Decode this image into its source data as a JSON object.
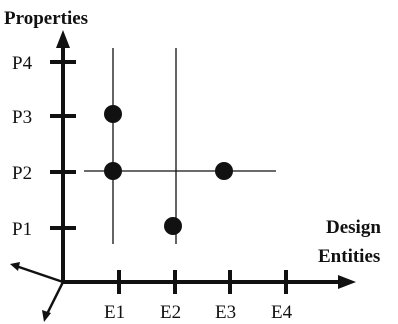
{
  "diagram": {
    "y_axis_title": "Properties",
    "x_axis_title_line1": "Design",
    "x_axis_title_line2": "Entities",
    "y_ticks": [
      "P4",
      "P3",
      "P2",
      "P1"
    ],
    "x_ticks": [
      "E1",
      "E2",
      "E3",
      "E4"
    ],
    "points": [
      {
        "entity": "E1",
        "property": "P3"
      },
      {
        "entity": "E1",
        "property": "P2"
      },
      {
        "entity": "E3",
        "property": "P2"
      },
      {
        "entity": "E2",
        "property": "P1"
      }
    ],
    "colors": {
      "ink": "#111111",
      "background": "#ffffff"
    }
  }
}
